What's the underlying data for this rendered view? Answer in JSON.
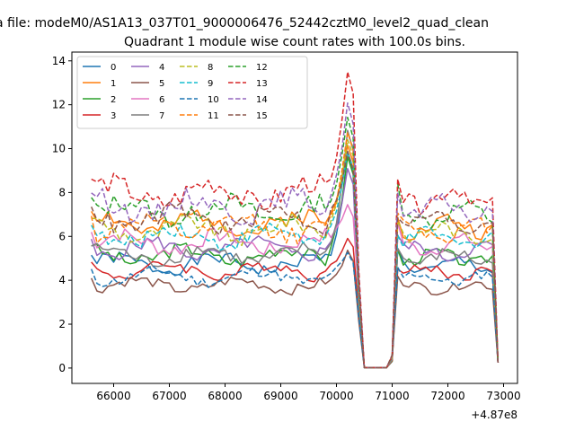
{
  "chart_data": {
    "type": "line",
    "figure_title": "a file: modeM0/AS1A13_037T01_9000006476_52442cztM0_level2_quad_clean",
    "title": "Quadrant 1 module wise count rates with 100.0s bins.",
    "xlabel": "",
    "ylabel": "",
    "x_offset_label": "+4.87e8",
    "xlim": [
      65250,
      73250
    ],
    "ylim": [
      -0.7,
      14.4
    ],
    "x_ticks": [
      66000,
      67000,
      68000,
      69000,
      70000,
      71000,
      72000,
      73000
    ],
    "x_tick_labels": [
      "66000",
      "67000",
      "68000",
      "69000",
      "70000",
      "71000",
      "72000",
      "73000"
    ],
    "y_ticks": [
      0,
      2,
      4,
      6,
      8,
      10,
      12,
      14
    ],
    "y_tick_labels": [
      "0",
      "2",
      "4",
      "6",
      "8",
      "10",
      "12",
      "14"
    ],
    "legend_position": "upper-left",
    "x_start": 65600,
    "x_step": 100,
    "series": [
      {
        "name": "0",
        "color": "#1f77b4",
        "dash": false,
        "base": 4.9,
        "peak": 9.8
      },
      {
        "name": "1",
        "color": "#ff7f0e",
        "dash": false,
        "base": 6.8,
        "peak": 10.2
      },
      {
        "name": "2",
        "color": "#2ca02c",
        "dash": false,
        "base": 5.3,
        "peak": 9.6
      },
      {
        "name": "3",
        "color": "#d62728",
        "dash": false,
        "base": 4.6,
        "peak": 6.0
      },
      {
        "name": "4",
        "color": "#9467bd",
        "dash": false,
        "base": 5.6,
        "peak": 9.1
      },
      {
        "name": "5",
        "color": "#8c564b",
        "dash": false,
        "base": 3.9,
        "peak": 5.3
      },
      {
        "name": "6",
        "color": "#e377c2",
        "dash": false,
        "base": 5.9,
        "peak": 7.5
      },
      {
        "name": "7",
        "color": "#7f7f7f",
        "dash": false,
        "base": 5.3,
        "peak": 10.8
      },
      {
        "name": "8",
        "color": "#bcbd22",
        "dash": true,
        "base": 6.5,
        "peak": 10.5
      },
      {
        "name": "9",
        "color": "#17becf",
        "dash": true,
        "base": 6.2,
        "peak": 9.9
      },
      {
        "name": "10",
        "color": "#1f77b4",
        "dash": true,
        "base": 4.3,
        "peak": 5.2
      },
      {
        "name": "11",
        "color": "#ff7f0e",
        "dash": true,
        "base": 6.6,
        "peak": 10.8
      },
      {
        "name": "12",
        "color": "#2ca02c",
        "dash": true,
        "base": 7.4,
        "peak": 11.4
      },
      {
        "name": "13",
        "color": "#d62728",
        "dash": true,
        "base": 8.2,
        "peak": 13.6
      },
      {
        "name": "14",
        "color": "#9467bd",
        "dash": true,
        "base": 7.6,
        "peak": 12.1
      },
      {
        "name": "15",
        "color": "#8c564b",
        "dash": true,
        "base": 7.0,
        "peak": 9.8
      }
    ]
  }
}
